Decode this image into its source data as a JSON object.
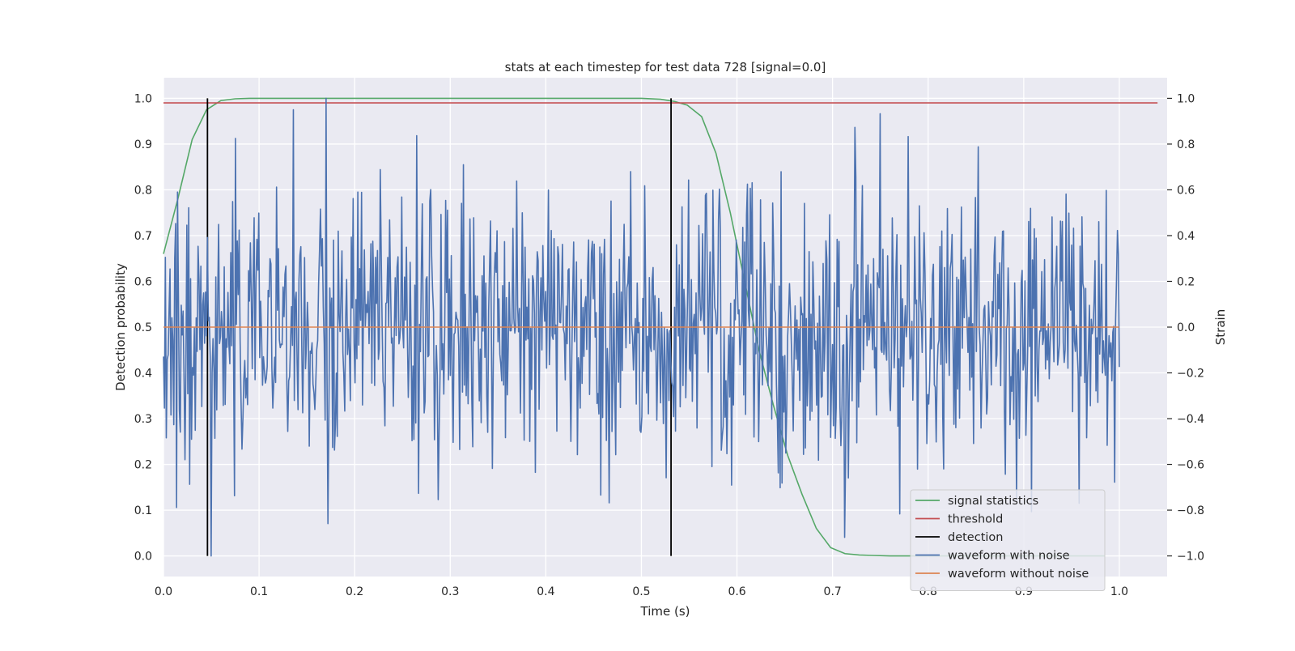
{
  "chart_data": {
    "type": "line",
    "title": "stats at each timestep for test data 728 [signal=0.0]",
    "xlabel": "Time (s)",
    "ylabel": "Detection probability",
    "y2label": "Strain",
    "xlim": [
      0.0,
      1.05
    ],
    "ylim": [
      -0.045,
      1.045
    ],
    "y2lim": [
      -1.09,
      1.09
    ],
    "xticks": [
      0.0,
      0.1,
      0.2,
      0.3,
      0.4,
      0.5,
      0.6,
      0.7,
      0.8,
      0.9,
      1.0
    ],
    "xtick_labels": [
      "0.0",
      "0.1",
      "0.2",
      "0.3",
      "0.4",
      "0.5",
      "0.6",
      "0.7",
      "0.8",
      "0.9",
      "1.0"
    ],
    "yticks": [
      0.0,
      0.1,
      0.2,
      0.3,
      0.4,
      0.5,
      0.6,
      0.7,
      0.8,
      0.9,
      1.0
    ],
    "ytick_labels": [
      "0.0",
      "0.1",
      "0.2",
      "0.3",
      "0.4",
      "0.5",
      "0.6",
      "0.7",
      "0.8",
      "0.9",
      "1.0"
    ],
    "y2ticks": [
      -1.0,
      -0.8,
      -0.6,
      -0.4,
      -0.2,
      0.0,
      0.2,
      0.4,
      0.6,
      0.8,
      1.0
    ],
    "y2tick_labels": [
      "−1.0",
      "−0.8",
      "−0.6",
      "−0.4",
      "−0.2",
      "0.0",
      "0.2",
      "0.4",
      "0.6",
      "0.8",
      "1.0"
    ],
    "grid": true,
    "legend_position": "lower-right",
    "series": [
      {
        "name": "signal statistics",
        "axis": "left",
        "color": "#55a868",
        "x": [
          0.0,
          0.015,
          0.03,
          0.045,
          0.06,
          0.075,
          0.09,
          0.12,
          0.2,
          0.3,
          0.4,
          0.5,
          0.52,
          0.535,
          0.548,
          0.563,
          0.578,
          0.593,
          0.608,
          0.623,
          0.638,
          0.653,
          0.668,
          0.683,
          0.698,
          0.713,
          0.728,
          0.743,
          0.76,
          0.8,
          0.9,
          0.985
        ],
        "values": [
          0.66,
          0.78,
          0.91,
          0.975,
          0.995,
          0.999,
          1.0,
          1.0,
          1.0,
          1.0,
          1.0,
          1.0,
          0.998,
          0.993,
          0.985,
          0.96,
          0.88,
          0.75,
          0.6,
          0.45,
          0.33,
          0.22,
          0.135,
          0.06,
          0.018,
          0.005,
          0.002,
          0.001,
          0.0,
          0.0,
          0.0,
          0.0
        ]
      },
      {
        "name": "threshold",
        "axis": "left",
        "color": "#c44e52",
        "x": [
          0.0,
          1.04
        ],
        "values": [
          0.99,
          0.99
        ]
      },
      {
        "name": "detection",
        "axis": "left",
        "type": "vlines",
        "color": "#000000",
        "x": [
          0.046,
          0.531
        ],
        "ymin": 0.0,
        "ymax": 1.0
      },
      {
        "name": "waveform with noise",
        "axis": "right",
        "color": "#4c72b0",
        "x_start": 0.0,
        "x_end": 1.0,
        "seed": 728,
        "n_points": 1024,
        "visible_max": 1.0,
        "visible_min": -1.0,
        "noise_amplitude": 0.3
      },
      {
        "name": "waveform without noise",
        "axis": "right",
        "color": "#dd8452",
        "x": [
          0.0,
          1.0
        ],
        "values": [
          0.0,
          0.0
        ]
      }
    ]
  }
}
